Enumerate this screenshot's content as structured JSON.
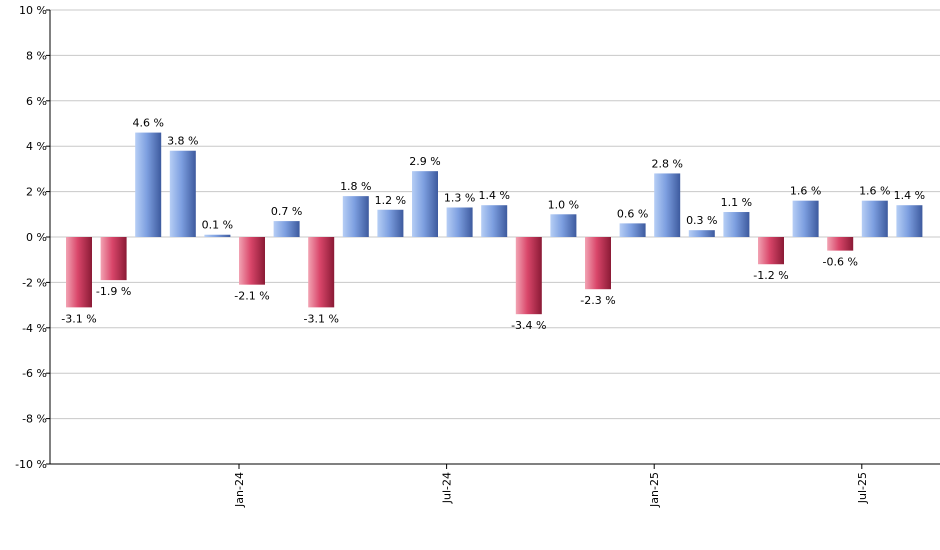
{
  "chart_data": {
    "type": "bar",
    "ylim": [
      -10,
      10
    ],
    "yticks": [
      10,
      8,
      6,
      4,
      2,
      0,
      -2,
      -4,
      -6,
      -8,
      -10
    ],
    "ytick_labels": [
      "10 %",
      "8 %",
      "6 %",
      "4 %",
      "2 %",
      "0 %",
      "-2 %",
      "-4 %",
      "-6 %",
      "-8 %",
      "-10 %"
    ],
    "xtick_labels": [
      {
        "label": "Jan-24",
        "index": 4.5
      },
      {
        "label": "Jul-24",
        "index": 10.5
      },
      {
        "label": "Jan-25",
        "index": 16.5
      },
      {
        "label": "Jul-25",
        "index": 22.5
      }
    ],
    "values": [
      -3.1,
      -1.9,
      4.6,
      3.8,
      0.1,
      -2.1,
      0.7,
      -3.1,
      1.8,
      1.2,
      2.9,
      1.3,
      1.4,
      -3.4,
      1.0,
      -2.3,
      0.6,
      2.8,
      0.3,
      1.1,
      -1.2,
      1.6,
      -0.6,
      1.6,
      1.4
    ],
    "value_labels": [
      "-3.1 %",
      "-1.9 %",
      "4.6 %",
      "3.8 %",
      "0.1 %",
      "-2.1 %",
      "0.7 %",
      "-3.1 %",
      "1.8 %",
      "1.2 %",
      "2.9 %",
      "1.3 %",
      "1.4 %",
      "-3.4 %",
      "1.0 %",
      "-2.3 %",
      "0.6 %",
      "2.8 %",
      "0.3 %",
      "1.1 %",
      "-1.2 %",
      "1.6 %",
      "-0.6 %",
      "1.6 %",
      "1.4 %"
    ],
    "grid": true,
    "colors": {
      "positive_light": "#b6cef5",
      "positive_mid": "#7d9fe0",
      "positive_dark": "#3d5a9e",
      "negative_light": "#f2a3b3",
      "negative_mid": "#d9466a",
      "negative_dark": "#8a1a35",
      "grid": "#c8c8c8",
      "axis": "#000000"
    }
  }
}
